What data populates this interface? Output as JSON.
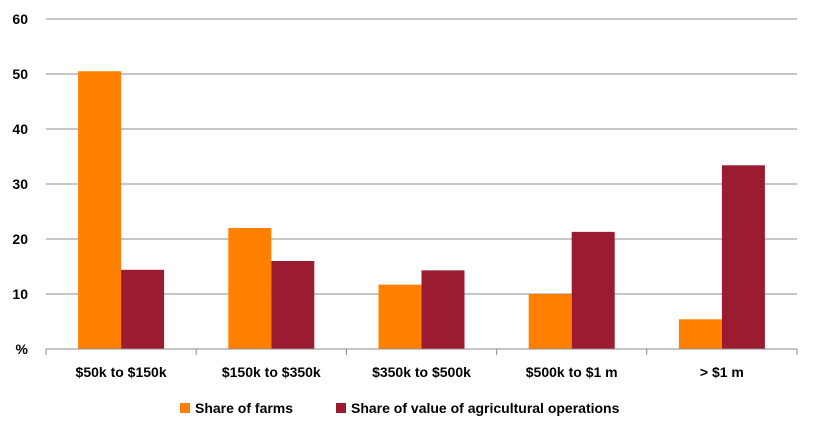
{
  "chart_data": {
    "type": "bar",
    "categories": [
      "$50k to $150k",
      "$150k to $350k",
      "$350k to $500k",
      "$500k to $1 m",
      "> $1 m"
    ],
    "series": [
      {
        "name": "Share of farms",
        "values": [
          50.5,
          22.0,
          11.7,
          10.0,
          5.4
        ],
        "color": "#FF7F00"
      },
      {
        "name": "Share of value of agricultural operations",
        "values": [
          14.4,
          16.0,
          14.3,
          21.3,
          33.4
        ],
        "color": "#9B1B30"
      }
    ],
    "title": "",
    "xlabel": "",
    "ylabel": "",
    "ylim": [
      0,
      60
    ],
    "yticks": [
      "%",
      "10",
      "20",
      "30",
      "40",
      "50",
      "60"
    ],
    "grid": true,
    "legend": "bottom"
  }
}
